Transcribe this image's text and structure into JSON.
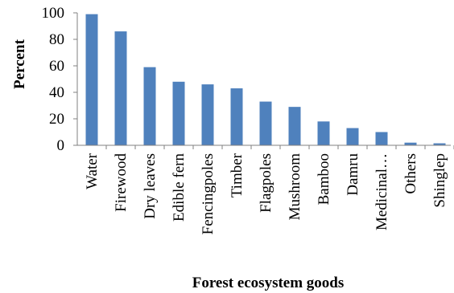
{
  "chart_data": {
    "type": "bar",
    "title": "",
    "xlabel": "Forest ecosystem goods",
    "ylabel": "Percent",
    "ylim": [
      0,
      100
    ],
    "yticks": [
      0,
      20,
      40,
      60,
      80,
      100
    ],
    "grid": false,
    "legend": "none",
    "bar_color": "#4f81bd",
    "categories": [
      "Water",
      "Firewood",
      "Dry leaves",
      "Edible fern",
      "Fencingpoles",
      "Timber",
      "Flagpoles",
      "Mushroom",
      "Bamboo",
      "Damru",
      "Medicinal…",
      "Others",
      "Shinglep"
    ],
    "values": [
      99,
      86,
      59,
      48,
      46,
      43,
      33,
      29,
      18,
      13,
      10,
      2,
      1.5
    ]
  }
}
